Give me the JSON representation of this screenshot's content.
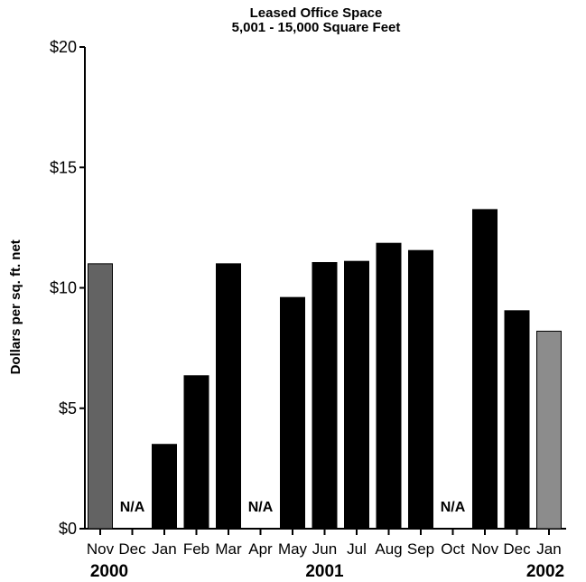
{
  "chart_data": {
    "type": "bar",
    "title": "Leased Office Space",
    "subtitle": "5,001 - 15,000 Square Feet",
    "ylabel": "Dollars per sq. ft. net",
    "xlabel": "",
    "ylim": [
      0,
      20
    ],
    "yticks": [
      0,
      5,
      10,
      15,
      20
    ],
    "ytick_labels": [
      "$0",
      "$5",
      "$10",
      "$15",
      "$20"
    ],
    "categories": [
      "Nov",
      "Dec",
      "Jan",
      "Feb",
      "Mar",
      "Apr",
      "May",
      "Jun",
      "Jul",
      "Aug",
      "Sep",
      "Oct",
      "Nov",
      "Dec",
      "Jan"
    ],
    "values": [
      11.0,
      null,
      3.5,
      6.35,
      11.0,
      null,
      9.6,
      11.05,
      11.1,
      11.85,
      11.55,
      null,
      13.25,
      9.05,
      8.2
    ],
    "na_label": "N/A",
    "year_labels": [
      "2000",
      "2001",
      "2002"
    ],
    "year_label_anchors": [
      0,
      7,
      14
    ],
    "bar_colors": [
      "#636363",
      "#000000",
      "#000000",
      "#000000",
      "#000000",
      "#000000",
      "#000000",
      "#000000",
      "#000000",
      "#000000",
      "#000000",
      "#000000",
      "#000000",
      "#000000",
      "#8c8c8c"
    ],
    "grid": false,
    "legend": "none"
  }
}
